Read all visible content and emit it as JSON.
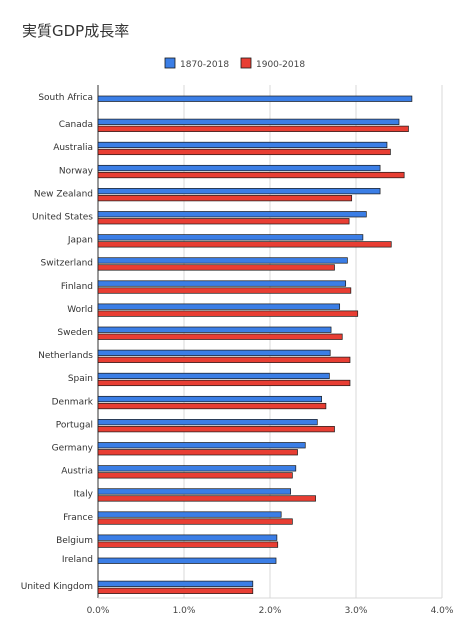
{
  "chart_data": {
    "type": "bar",
    "orientation": "horizontal",
    "title": "実質GDP成長率",
    "categories": [
      "South Africa",
      "Canada",
      "Australia",
      "Norway",
      "New Zealand",
      "United States",
      "Japan",
      "Switzerland",
      "Finland",
      "World",
      "Sweden",
      "Netherlands",
      "Spain",
      "Denmark",
      "Portugal",
      "Germany",
      "Austria",
      "Italy",
      "France",
      "Belgium",
      "Ireland",
      "United Kingdom"
    ],
    "series": [
      {
        "name": "1870-2018",
        "color": "#3b7ee6",
        "values": [
          3.65,
          3.5,
          3.36,
          3.28,
          3.28,
          3.12,
          3.08,
          2.9,
          2.88,
          2.81,
          2.71,
          2.7,
          2.69,
          2.6,
          2.55,
          2.41,
          2.3,
          2.24,
          2.13,
          2.08,
          2.07,
          1.8
        ]
      },
      {
        "name": "1900-2018",
        "color": "#e83e33",
        "values": [
          null,
          3.61,
          3.4,
          3.56,
          2.95,
          2.92,
          3.41,
          2.75,
          2.94,
          3.02,
          2.84,
          2.93,
          2.93,
          2.65,
          2.75,
          2.32,
          2.26,
          2.53,
          2.26,
          2.09,
          null,
          1.8
        ]
      }
    ],
    "xlim": [
      0,
      4.0
    ],
    "xticks": [
      "0.0%",
      "1.0%",
      "2.0%",
      "3.0%",
      "4.0%"
    ],
    "xtick_values": [
      0,
      1,
      2,
      3,
      4
    ],
    "grid": true,
    "legend_position": "top"
  }
}
